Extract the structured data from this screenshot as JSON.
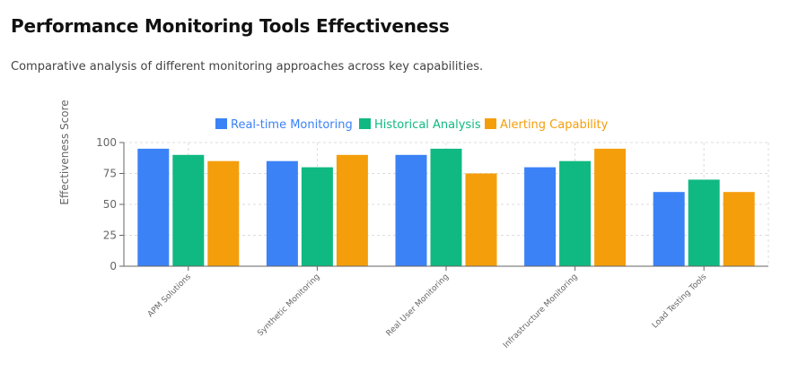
{
  "header": {
    "title": "Performance Monitoring Tools Effectiveness",
    "subtitle": "Comparative analysis of different monitoring approaches across key capabilities."
  },
  "chart_data": {
    "type": "bar",
    "title": "",
    "xlabel": "",
    "ylabel": "Effectiveness Score",
    "ylim": [
      0,
      100
    ],
    "yticks": [
      0,
      25,
      50,
      75,
      100
    ],
    "grid": true,
    "legend_position": "top-center",
    "categories": [
      "APM Solutions",
      "Synthetic Monitoring",
      "Real User Monitoring",
      "Infrastructure Monitoring",
      "Load Testing Tools"
    ],
    "series": [
      {
        "name": "Real-time Monitoring",
        "color": "#3b82f6",
        "values": [
          95,
          85,
          90,
          80,
          60
        ]
      },
      {
        "name": "Historical Analysis",
        "color": "#10b981",
        "values": [
          90,
          80,
          95,
          85,
          70
        ]
      },
      {
        "name": "Alerting Capability",
        "color": "#f59e0b",
        "values": [
          85,
          90,
          75,
          95,
          60
        ]
      }
    ]
  }
}
